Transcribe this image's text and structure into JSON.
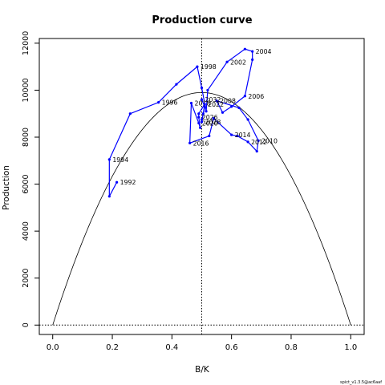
{
  "chart_data": {
    "type": "line",
    "title": "Production curve",
    "xlabel": "B/K",
    "ylabel": "Production",
    "xlim": [
      -0.045,
      1.045
    ],
    "ylim": [
      -400,
      12200
    ],
    "xticks": [
      "0.0",
      "0.2",
      "0.4",
      "0.6",
      "0.8",
      "1.0"
    ],
    "yticks": [
      "0",
      "2000",
      "4000",
      "6000",
      "8000",
      "10000",
      "12000"
    ],
    "curve": {
      "type": "parabola",
      "peak_x": 0.5,
      "peak_y": 9900
    },
    "reference_lines": {
      "vertical_x": 0.5,
      "horizontal_y": 0
    },
    "series": [
      {
        "color": "#0000ff",
        "points": [
          {
            "x": 0.215,
            "y": 6080,
            "label": "1992"
          },
          {
            "x": 0.19,
            "y": 5480
          },
          {
            "x": 0.19,
            "y": 7050,
            "label": "1994"
          },
          {
            "x": 0.26,
            "y": 9000
          },
          {
            "x": 0.355,
            "y": 9480,
            "label": "1996"
          },
          {
            "x": 0.415,
            "y": 10250
          },
          {
            "x": 0.485,
            "y": 11000,
            "label": "1998"
          },
          {
            "x": 0.5,
            "y": 10100
          },
          {
            "x": 0.515,
            "y": 9100
          },
          {
            "x": 0.52,
            "y": 10000
          },
          {
            "x": 0.585,
            "y": 11200,
            "label": "2002"
          },
          {
            "x": 0.645,
            "y": 11750
          },
          {
            "x": 0.67,
            "y": 11650,
            "label": "2004"
          },
          {
            "x": 0.67,
            "y": 11300
          },
          {
            "x": 0.645,
            "y": 9750,
            "label": "2006"
          },
          {
            "x": 0.6,
            "y": 9300
          },
          {
            "x": 0.57,
            "y": 9050
          },
          {
            "x": 0.55,
            "y": 9550,
            "label": "2008"
          },
          {
            "x": 0.625,
            "y": 9250
          },
          {
            "x": 0.655,
            "y": 8750
          },
          {
            "x": 0.69,
            "y": 7850,
            "label": "2010"
          },
          {
            "x": 0.685,
            "y": 7400
          },
          {
            "x": 0.655,
            "y": 7800,
            "label": "2012"
          },
          {
            "x": 0.62,
            "y": 8050
          },
          {
            "x": 0.6,
            "y": 8100,
            "label": "2014"
          },
          {
            "x": 0.54,
            "y": 8800
          },
          {
            "x": 0.525,
            "y": 8050
          },
          {
            "x": 0.46,
            "y": 7750,
            "label": "2016"
          },
          {
            "x": 0.465,
            "y": 9450,
            "label": "2018"
          },
          {
            "x": 0.49,
            "y": 8600,
            "label": "2020"
          },
          {
            "x": 0.495,
            "y": 8400
          },
          {
            "x": 0.49,
            "y": 8850,
            "label": "2026"
          },
          {
            "x": 0.49,
            "y": 9000
          },
          {
            "x": 0.51,
            "y": 9400,
            "label": "2022"
          },
          {
            "x": 0.505,
            "y": 9000
          },
          {
            "x": 0.5,
            "y": 8750
          },
          {
            "x": 0.5,
            "y": 8650,
            "label": "2028"
          },
          {
            "x": 0.51,
            "y": 9300
          },
          {
            "x": 0.5,
            "y": 9600,
            "label": "2032"
          }
        ]
      }
    ],
    "grid": false,
    "legend": "none"
  },
  "footer_text": "spict_v1.3.5@ac6aaf"
}
